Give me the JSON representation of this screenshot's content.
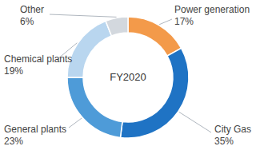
{
  "chart_data": {
    "type": "pie",
    "title": "FY2020",
    "categories": [
      "Power generation",
      "City Gas",
      "General plants",
      "Chemical plants",
      "Other"
    ],
    "values": [
      17,
      35,
      23,
      19,
      6
    ],
    "value_labels": [
      "17%",
      "35%",
      "23%",
      "19%",
      "6%"
    ],
    "colors": [
      "#f39a4a",
      "#1f73c4",
      "#4e9bd8",
      "#b9d6ef",
      "#d3d8de"
    ],
    "data_labels": true
  }
}
